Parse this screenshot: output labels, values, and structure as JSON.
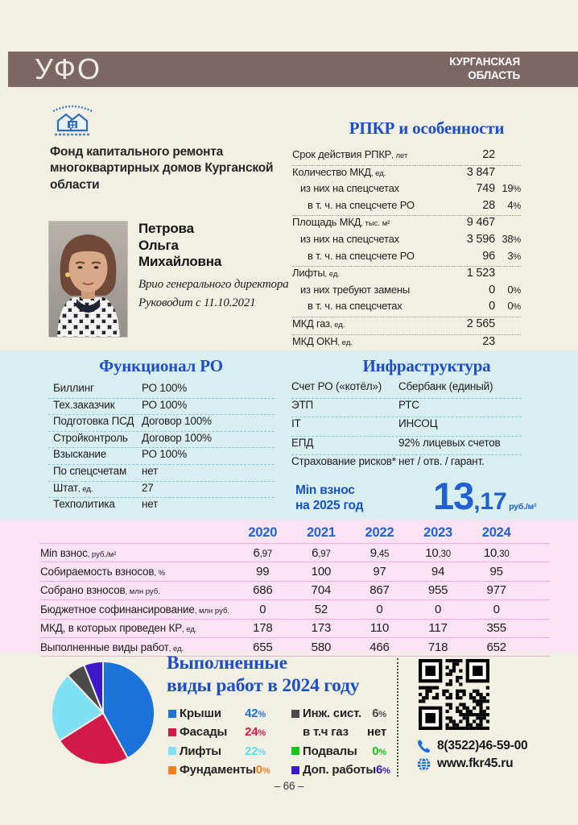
{
  "page": {
    "district": "УФО",
    "region_line1": "КУРГАНСКАЯ",
    "region_line2": "ОБЛАСТЬ",
    "page_number": "– 66 –"
  },
  "org": {
    "name": "Фонд капитального ремонта многоквартирных домов Курганской области"
  },
  "director": {
    "last_name": "Петрова",
    "first_name": "Ольга",
    "middle_name": "Михайловна",
    "position": "Врио генерального директора",
    "tenure": "Руководит с 11.10.2021"
  },
  "rpkr": {
    "title": "РПКР и особенности",
    "rows": [
      {
        "label": "Срок действия РПКР",
        "unit": ", лет",
        "value": "22",
        "pct": "",
        "indent": 0,
        "sep": true
      },
      {
        "label": "Количество МКД",
        "unit": ", ед.",
        "value": "3 847",
        "pct": "",
        "indent": 0,
        "sep": false
      },
      {
        "label": "из них на спецсчетах",
        "unit": "",
        "value": "749",
        "pct": "19%",
        "indent": 1,
        "sep": false
      },
      {
        "label": "в т. ч. на спецсчете РО",
        "unit": "",
        "value": "28",
        "pct": "4%",
        "indent": 2,
        "sep": true
      },
      {
        "label": "Площадь МКД",
        "unit": ", тыс. м²",
        "value": "9 467",
        "pct": "",
        "indent": 0,
        "sep": false
      },
      {
        "label": "из них на спецсчетах",
        "unit": "",
        "value": "3 596",
        "pct": "38%",
        "indent": 1,
        "sep": false
      },
      {
        "label": "в т. ч. на спецсчете РО",
        "unit": "",
        "value": "96",
        "pct": "3%",
        "indent": 2,
        "sep": true
      },
      {
        "label": "Лифты",
        "unit": ", ед.",
        "value": "1 523",
        "pct": "",
        "indent": 0,
        "sep": false
      },
      {
        "label": "из них требуют замены",
        "unit": "",
        "value": "0",
        "pct": "0%",
        "indent": 1,
        "sep": false
      },
      {
        "label": "в т. ч. на спецсчетах",
        "unit": "",
        "value": "0",
        "pct": "0%",
        "indent": 2,
        "sep": true
      },
      {
        "label": "МКД газ",
        "unit": ", ед.",
        "value": "2 565",
        "pct": "",
        "indent": 0,
        "sep": true
      },
      {
        "label": "МКД ОКН",
        "unit": ", ед.",
        "value": "23",
        "pct": "",
        "indent": 0,
        "sep": true
      }
    ]
  },
  "functional": {
    "title": "Функционал РО",
    "rows": [
      {
        "label": "Биллинг",
        "unit": "",
        "value": "РО 100%"
      },
      {
        "label": "Тех.заказчик",
        "unit": "",
        "value": "РО 100%"
      },
      {
        "label": "Подготовка ПСД",
        "unit": "",
        "value": "Договор 100%"
      },
      {
        "label": "Стройконтроль",
        "unit": "",
        "value": "Договор 100%"
      },
      {
        "label": "Взыскание",
        "unit": "",
        "value": "РО 100%"
      },
      {
        "label": "По спецсчетам",
        "unit": "",
        "value": "нет"
      },
      {
        "label": "Штат",
        "unit": ", ед.",
        "value": "27"
      },
      {
        "label": "Техполитика",
        "unit": "",
        "value": "нет"
      }
    ]
  },
  "infrastructure": {
    "title": "Инфраструктура",
    "rows": [
      {
        "label": "Счет РО («котёл»)",
        "value": "Сбербанк (единый)"
      },
      {
        "label": "ЭТП",
        "value": "РТС"
      },
      {
        "label": "IT",
        "value": "ИНСОЦ"
      },
      {
        "label": "ЕПД",
        "value": "92% лицевых счетов"
      },
      {
        "label": "Страхование рисков*",
        "value": "нет / отв. / гарант."
      }
    ]
  },
  "min_contribution_2025": {
    "label_line1": "Min взнос",
    "label_line2": "на 2025 год",
    "value": "13,17",
    "unit": "руб./м²"
  },
  "years": {
    "columns": [
      "2020",
      "2021",
      "2022",
      "2023",
      "2024"
    ],
    "rows": [
      {
        "label": "Min взнос",
        "unit": ", руб./м²",
        "values": [
          "6,97",
          "6,97",
          "9,45",
          "10,30",
          "10,30"
        ]
      },
      {
        "label": "Собираемость взносов",
        "unit": ", %",
        "values": [
          "99",
          "100",
          "97",
          "94",
          "95"
        ]
      },
      {
        "label": "Собрано взносов",
        "unit": ", млн руб.",
        "values": [
          "686",
          "704",
          "867",
          "955",
          "977"
        ]
      },
      {
        "label": "Бюджетное софинансирование",
        "unit": ", млн руб.",
        "values": [
          "0",
          "52",
          "0",
          "0",
          "0"
        ]
      },
      {
        "label": "МКД, в которых проведен КР",
        "unit": ", ед.",
        "values": [
          "178",
          "173",
          "110",
          "117",
          "355"
        ]
      },
      {
        "label": "Выполненные виды работ",
        "unit": ", ед.",
        "values": [
          "655",
          "580",
          "466",
          "718",
          "652"
        ]
      }
    ]
  },
  "works_2024": {
    "title_line1": "Выполненные",
    "title_line2": "виды работ в 2024 году",
    "legend_left": [
      {
        "label": "Крыши",
        "value": "42%",
        "color": "#1a73d8",
        "value_color": "#1a73d8"
      },
      {
        "label": "Фасады",
        "value": "24%",
        "color": "#d2194a",
        "value_color": "#d2194a"
      },
      {
        "label": "Лифты",
        "value": "22%",
        "color": "#7fe0f5",
        "value_color": "#66d7f0"
      },
      {
        "label": "Фундаменты",
        "value": "0%",
        "color": "#f57f20",
        "value_color": "#f57f20"
      }
    ],
    "legend_right": [
      {
        "label": "Инж. сист.",
        "value": "6%",
        "color": "#4a4a4a",
        "value_color": "#4a4a4a"
      },
      {
        "label": "в т.ч газ",
        "value": "нет",
        "color": null,
        "value_color": "#1d1d1d"
      },
      {
        "label": "Подвалы",
        "value": "0%",
        "color": "#18c518",
        "value_color": "#18c518"
      },
      {
        "label": "Доп. работы",
        "value": "6%",
        "color": "#3b18c9",
        "value_color": "#3b18c9"
      }
    ]
  },
  "chart_data": {
    "type": "pie",
    "title": "Выполненные виды работ в 2024 году",
    "labels": [
      "Крыши",
      "Фасады",
      "Лифты",
      "Фундаменты",
      "Инж. сист.",
      "Подвалы",
      "Доп. работы"
    ],
    "values": [
      42,
      24,
      22,
      0,
      6,
      0,
      6
    ],
    "unit": "%",
    "colors": [
      "#1a73d8",
      "#d2194a",
      "#7fe0f5",
      "#f57f20",
      "#4a4a4a",
      "#18c518",
      "#3b18c9"
    ],
    "annotations": [
      {
        "label": "в т.ч газ",
        "value": "нет"
      }
    ],
    "start_angle": "top",
    "direction": "clockwise",
    "legend_position": "right"
  },
  "contact": {
    "phone": "8(3522)46-59-00",
    "website": "www.fkr45.ru"
  },
  "colors": {
    "page_bg": "#f2f0e3",
    "bar_brown": "#7c6764",
    "heading_blue": "#1d4ec5",
    "cyan_bg": "#d8eef1",
    "pink_bg": "#fbe3f3",
    "accent_blue": "#2160d3"
  }
}
